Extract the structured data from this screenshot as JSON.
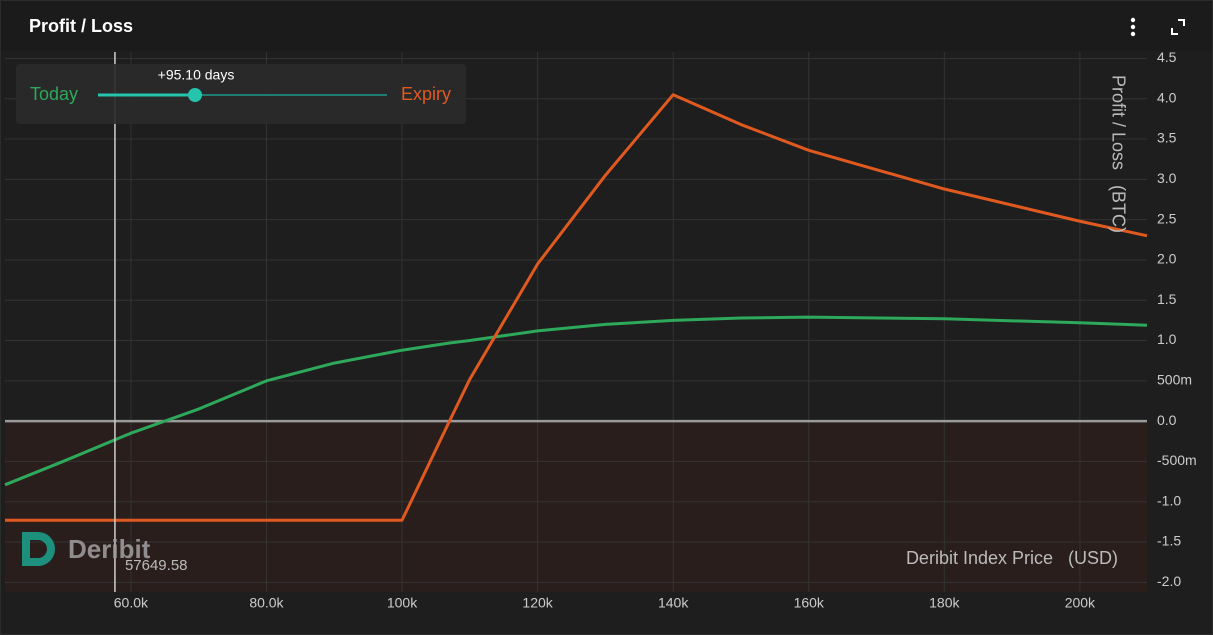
{
  "header": {
    "title": "Profit / Loss"
  },
  "controls": {
    "days_label": "+95.10 days"
  },
  "branding": "Deribit",
  "chart_data": {
    "type": "line",
    "y_label": "Profit / Loss   (BTC)",
    "x_label": "Deribit Index Price   (USD)",
    "x": [
      41430,
      50000,
      60000,
      65000,
      70000,
      80000,
      90000,
      100000,
      107000,
      110000,
      120000,
      130000,
      140000,
      150000,
      160000,
      180000,
      200000,
      209900
    ],
    "series": [
      {
        "name": "Today",
        "color": "#2ea85a",
        "values": [
          -0.79,
          -0.5,
          -0.15,
          0.0,
          0.15,
          0.5,
          0.72,
          0.88,
          0.97,
          1.0,
          1.12,
          1.2,
          1.25,
          1.28,
          1.29,
          1.27,
          1.22,
          1.19
        ]
      },
      {
        "name": "Expiry",
        "color": "#e05a20",
        "values": [
          -1.23,
          -1.23,
          -1.23,
          -1.23,
          -1.23,
          -1.23,
          -1.23,
          -1.23,
          0.0,
          0.52,
          1.95,
          3.05,
          4.05,
          3.68,
          3.36,
          2.88,
          2.48,
          2.3
        ]
      }
    ],
    "xlim": [
      41430,
      209900
    ],
    "ylim": [
      -2.12,
      4.58
    ],
    "xticks": [
      {
        "value": 60000,
        "label": "60.0k"
      },
      {
        "value": 80000,
        "label": "80.0k"
      },
      {
        "value": 100000,
        "label": "100k"
      },
      {
        "value": 120000,
        "label": "120k"
      },
      {
        "value": 140000,
        "label": "140k"
      },
      {
        "value": 160000,
        "label": "160k"
      },
      {
        "value": 180000,
        "label": "180k"
      },
      {
        "value": 200000,
        "label": "200k"
      }
    ],
    "yticks": [
      {
        "value": -2,
        "label": "-2.0"
      },
      -1.5,
      {
        "value": -1,
        "label": "-1.0"
      },
      {
        "value": -0.5,
        "label": "-500m"
      },
      {
        "value": 0,
        "label": "0.0"
      },
      {
        "value": 0.5,
        "label": "500m"
      },
      {
        "value": 1,
        "label": "1.0"
      },
      1.5,
      {
        "value": 2,
        "label": "2.0"
      },
      2.5,
      {
        "value": 3,
        "label": "3.0"
      },
      3.5,
      {
        "value": 4,
        "label": "4.0"
      },
      4.5
    ],
    "grid": true,
    "crosshair_x": 57649.58
  }
}
